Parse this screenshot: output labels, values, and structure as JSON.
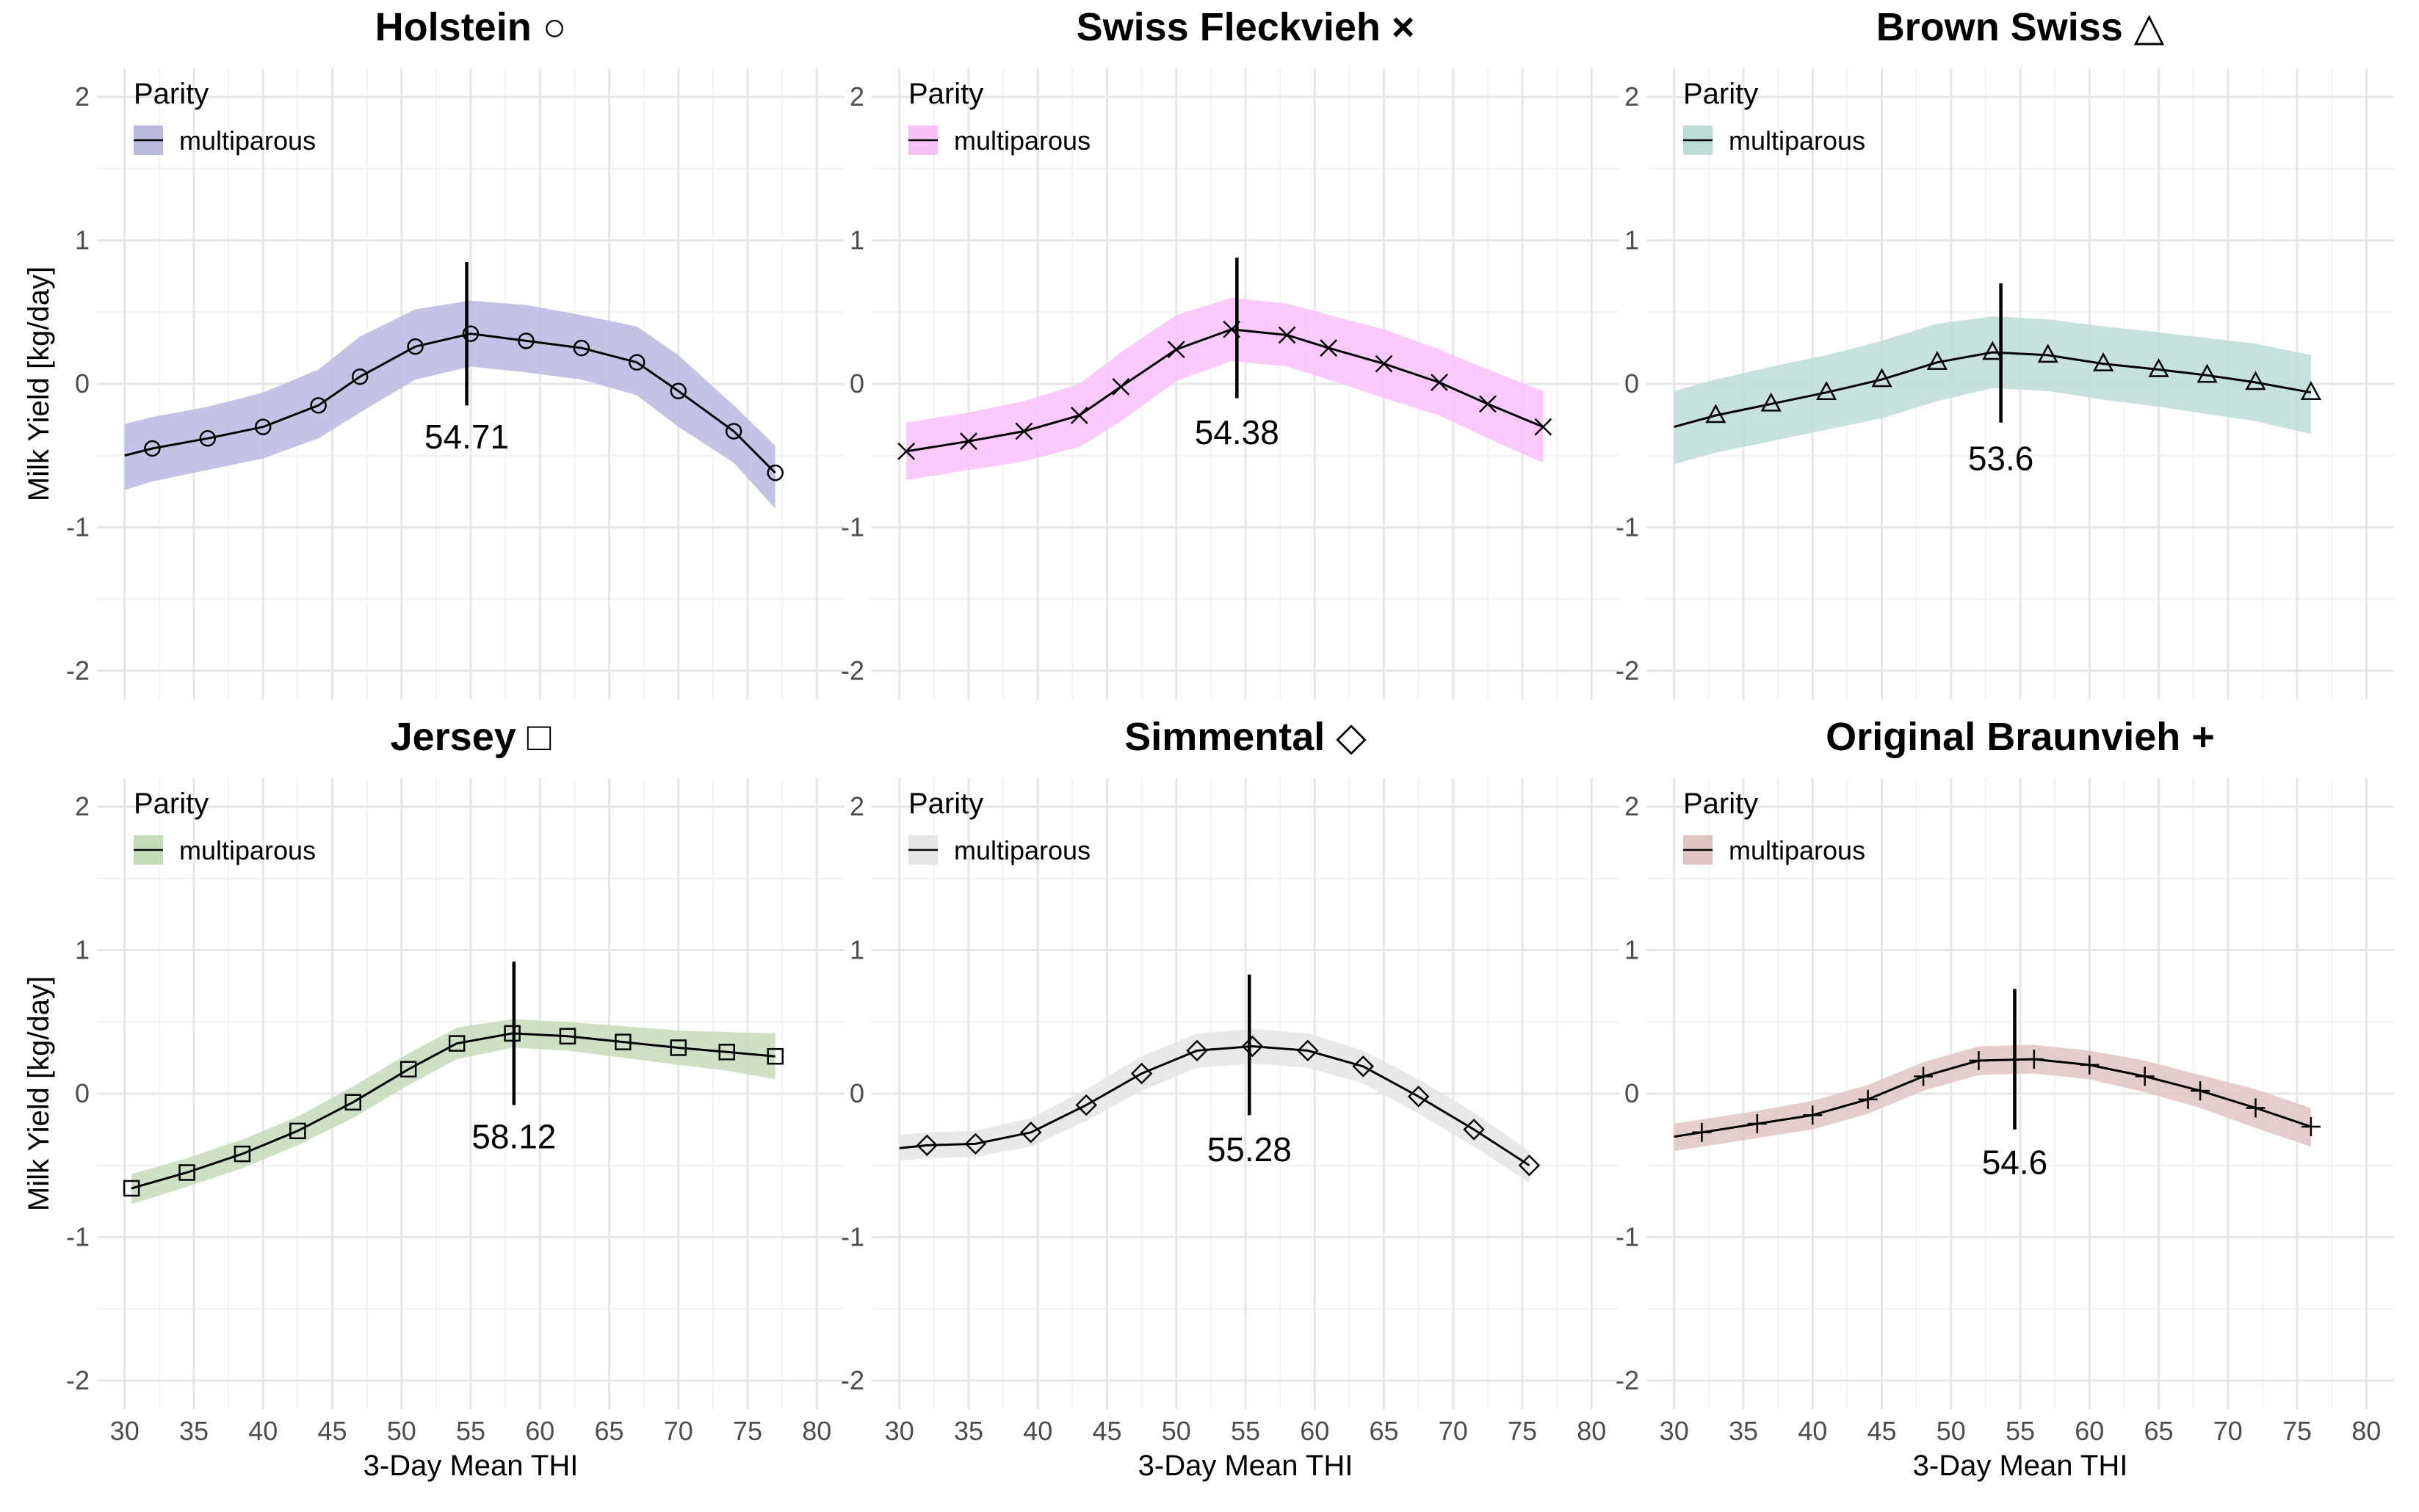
{
  "chart_data": {
    "type": "line",
    "layout": "facet grid, 2 rows x 3 columns",
    "xlabel": "3-Day Mean THI",
    "ylabel": "Milk Yield [kg/day]",
    "xlim": [
      28,
      82
    ],
    "ylim": [
      -2.2,
      2.2
    ],
    "xticks": [
      30,
      35,
      40,
      45,
      50,
      55,
      60,
      65,
      70,
      75,
      80
    ],
    "yticks": [
      -2,
      -1,
      0,
      1,
      2
    ],
    "legend_title": "Parity",
    "legend_label": "multiparous",
    "panels": [
      {
        "title": "Holstein ○",
        "marker": "circle",
        "band_color": "#b9b9e0",
        "peak_thi": 54.71,
        "peak_label": "54.71",
        "peak_line": [
          -0.15,
          0.85
        ],
        "label_pos": [
          54.71,
          -0.45
        ],
        "x": [
          30,
          32,
          36,
          40,
          44,
          47,
          51,
          55,
          59,
          63,
          67,
          70,
          74,
          77
        ],
        "y": [
          -0.5,
          -0.45,
          -0.38,
          -0.3,
          -0.15,
          0.05,
          0.26,
          0.35,
          0.3,
          0.25,
          0.15,
          -0.05,
          -0.33,
          -0.62
        ],
        "upper": [
          -0.28,
          -0.23,
          -0.16,
          -0.06,
          0.1,
          0.33,
          0.52,
          0.58,
          0.55,
          0.48,
          0.4,
          0.2,
          -0.15,
          -0.43
        ],
        "lower": [
          -0.74,
          -0.68,
          -0.6,
          -0.52,
          -0.38,
          -0.2,
          0.03,
          0.12,
          0.08,
          0.03,
          -0.08,
          -0.3,
          -0.55,
          -0.87
        ],
        "markers_x": [
          32,
          36,
          40,
          44,
          47,
          51,
          55,
          59,
          63,
          67,
          70,
          74,
          77
        ],
        "markers_y": [
          -0.45,
          -0.38,
          -0.3,
          -0.15,
          0.05,
          0.26,
          0.35,
          0.3,
          0.25,
          0.15,
          -0.05,
          -0.33,
          -0.62
        ]
      },
      {
        "title": "Swiss Fleckvieh ×",
        "marker": "cross",
        "band_color": "#fac0fa",
        "peak_thi": 54.38,
        "peak_label": "54.38",
        "peak_line": [
          -0.1,
          0.88
        ],
        "label_pos": [
          54.38,
          -0.42
        ],
        "x": [
          30.5,
          35,
          39,
          43,
          46,
          50,
          54,
          58,
          61,
          65,
          69,
          72.5,
          76.5
        ],
        "y": [
          -0.47,
          -0.4,
          -0.33,
          -0.22,
          -0.02,
          0.24,
          0.38,
          0.34,
          0.25,
          0.14,
          0.01,
          -0.14,
          -0.3
        ],
        "upper": [
          -0.27,
          -0.2,
          -0.12,
          0.0,
          0.22,
          0.48,
          0.6,
          0.56,
          0.48,
          0.38,
          0.24,
          0.1,
          -0.05
        ],
        "lower": [
          -0.67,
          -0.6,
          -0.54,
          -0.44,
          -0.26,
          0.02,
          0.16,
          0.12,
          0.03,
          -0.1,
          -0.22,
          -0.38,
          -0.55
        ],
        "markers_x": [
          30.5,
          35,
          39,
          43,
          46,
          50,
          54,
          58,
          61,
          65,
          69,
          72.5,
          76.5
        ],
        "markers_y": [
          -0.47,
          -0.4,
          -0.33,
          -0.22,
          -0.02,
          0.24,
          0.38,
          0.34,
          0.25,
          0.14,
          0.01,
          -0.14,
          -0.3
        ]
      },
      {
        "title": "Brown Swiss △",
        "marker": "triangle",
        "band_color": "#bcdcd8",
        "peak_thi": 53.6,
        "peak_label": "53.6",
        "peak_line": [
          -0.27,
          0.7
        ],
        "label_pos": [
          53.6,
          -0.6
        ],
        "x": [
          30,
          33,
          37,
          41,
          45,
          49,
          53,
          57,
          61,
          65,
          68.5,
          72,
          76
        ],
        "y": [
          -0.3,
          -0.22,
          -0.14,
          -0.06,
          0.03,
          0.15,
          0.22,
          0.2,
          0.14,
          0.1,
          0.06,
          0.01,
          -0.06
        ],
        "upper": [
          -0.05,
          0.03,
          0.12,
          0.2,
          0.3,
          0.42,
          0.47,
          0.45,
          0.4,
          0.36,
          0.32,
          0.28,
          0.2
        ],
        "lower": [
          -0.56,
          -0.48,
          -0.4,
          -0.32,
          -0.24,
          -0.12,
          -0.03,
          -0.05,
          -0.11,
          -0.16,
          -0.21,
          -0.26,
          -0.35
        ],
        "markers_x": [
          33,
          37,
          41,
          45,
          49,
          53,
          57,
          61,
          65,
          68.5,
          72,
          76
        ],
        "markers_y": [
          -0.22,
          -0.14,
          -0.06,
          0.03,
          0.15,
          0.22,
          0.2,
          0.14,
          0.1,
          0.06,
          0.01,
          -0.06
        ]
      },
      {
        "title": "Jersey □",
        "marker": "square",
        "band_color": "#c5dcbb",
        "peak_thi": 58.12,
        "peak_label": "58.12",
        "peak_line": [
          -0.08,
          0.92
        ],
        "label_pos": [
          58.12,
          -0.38
        ],
        "x": [
          30.5,
          34.5,
          38.5,
          42.5,
          46.5,
          50.5,
          54,
          58,
          62,
          66,
          70,
          73.5,
          77
        ],
        "y": [
          -0.66,
          -0.55,
          -0.42,
          -0.26,
          -0.06,
          0.17,
          0.35,
          0.42,
          0.4,
          0.36,
          0.32,
          0.29,
          0.26
        ],
        "upper": [
          -0.56,
          -0.45,
          -0.32,
          -0.16,
          0.05,
          0.28,
          0.46,
          0.52,
          0.5,
          0.47,
          0.44,
          0.43,
          0.42
        ],
        "lower": [
          -0.77,
          -0.65,
          -0.52,
          -0.36,
          -0.17,
          0.06,
          0.24,
          0.32,
          0.3,
          0.25,
          0.2,
          0.16,
          0.1
        ],
        "markers_x": [
          30.5,
          34.5,
          38.5,
          42.5,
          46.5,
          50.5,
          54,
          58,
          62,
          66,
          70,
          73.5,
          77
        ],
        "markers_y": [
          -0.66,
          -0.55,
          -0.42,
          -0.26,
          -0.06,
          0.17,
          0.35,
          0.42,
          0.4,
          0.36,
          0.32,
          0.29,
          0.26
        ]
      },
      {
        "title": "Simmental ◇",
        "marker": "diamond",
        "band_color": "#e5e5e5",
        "peak_thi": 55.28,
        "peak_label": "55.28",
        "peak_line": [
          -0.15,
          0.83
        ],
        "label_pos": [
          55.28,
          -0.47
        ],
        "x": [
          30,
          32,
          35.5,
          39.5,
          43.5,
          47.5,
          51.5,
          55.5,
          59.5,
          63.5,
          67.5,
          71.5,
          75.5
        ],
        "y": [
          -0.38,
          -0.36,
          -0.35,
          -0.27,
          -0.08,
          0.14,
          0.3,
          0.33,
          0.3,
          0.19,
          -0.02,
          -0.25,
          -0.5
        ],
        "upper": [
          -0.29,
          -0.27,
          -0.26,
          -0.17,
          0.03,
          0.26,
          0.42,
          0.45,
          0.42,
          0.3,
          0.1,
          -0.13,
          -0.4
        ],
        "lower": [
          -0.47,
          -0.45,
          -0.44,
          -0.37,
          -0.19,
          0.02,
          0.18,
          0.21,
          0.18,
          0.07,
          -0.14,
          -0.37,
          -0.62
        ],
        "markers_x": [
          32,
          35.5,
          39.5,
          43.5,
          47.5,
          51.5,
          55.5,
          59.5,
          63.5,
          67.5,
          71.5,
          75.5
        ],
        "markers_y": [
          -0.36,
          -0.35,
          -0.27,
          -0.08,
          0.14,
          0.3,
          0.33,
          0.3,
          0.19,
          -0.02,
          -0.25,
          -0.5
        ]
      },
      {
        "title": "Original Braunvieh +",
        "marker": "plus",
        "band_color": "#e0c4c4",
        "peak_thi": 54.6,
        "peak_label": "54.6",
        "peak_line": [
          -0.25,
          0.73
        ],
        "label_pos": [
          54.6,
          -0.56
        ],
        "x": [
          30,
          32,
          36,
          40,
          44,
          48,
          52,
          56,
          60,
          64,
          68,
          72,
          76
        ],
        "y": [
          -0.3,
          -0.27,
          -0.21,
          -0.15,
          -0.04,
          0.12,
          0.23,
          0.24,
          0.2,
          0.12,
          0.02,
          -0.1,
          -0.23
        ],
        "upper": [
          -0.21,
          -0.18,
          -0.12,
          -0.05,
          0.06,
          0.22,
          0.33,
          0.34,
          0.3,
          0.23,
          0.13,
          0.03,
          -0.1
        ],
        "lower": [
          -0.4,
          -0.37,
          -0.31,
          -0.25,
          -0.14,
          0.02,
          0.13,
          0.14,
          0.1,
          0.01,
          -0.1,
          -0.24,
          -0.37
        ],
        "markers_x": [
          32,
          36,
          40,
          44,
          48,
          52,
          56,
          60,
          64,
          68,
          72,
          76
        ],
        "markers_y": [
          -0.27,
          -0.21,
          -0.15,
          -0.04,
          0.12,
          0.23,
          0.24,
          0.2,
          0.12,
          0.02,
          -0.1,
          -0.23
        ]
      }
    ]
  }
}
